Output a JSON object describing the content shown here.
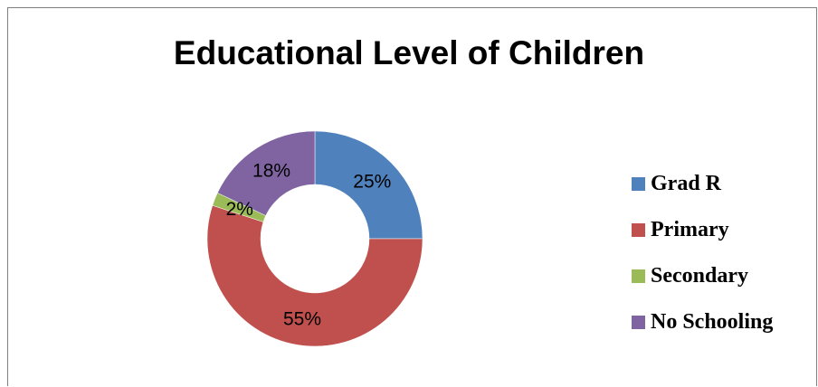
{
  "chart_data": {
    "type": "pie",
    "variant": "doughnut",
    "title": "Educational Level of Children",
    "slices": [
      {
        "label": "Grad R",
        "value": 25,
        "display": "25%",
        "color": "#4f81bd"
      },
      {
        "label": "Primary",
        "value": 55,
        "display": "55%",
        "color": "#c0504d"
      },
      {
        "label": "Secondary",
        "value": 2,
        "display": "2%",
        "color": "#9bbb59"
      },
      {
        "label": "No Schooling",
        "value": 18,
        "display": "18%",
        "color": "#8064a2"
      }
    ],
    "legend_position": "right"
  }
}
